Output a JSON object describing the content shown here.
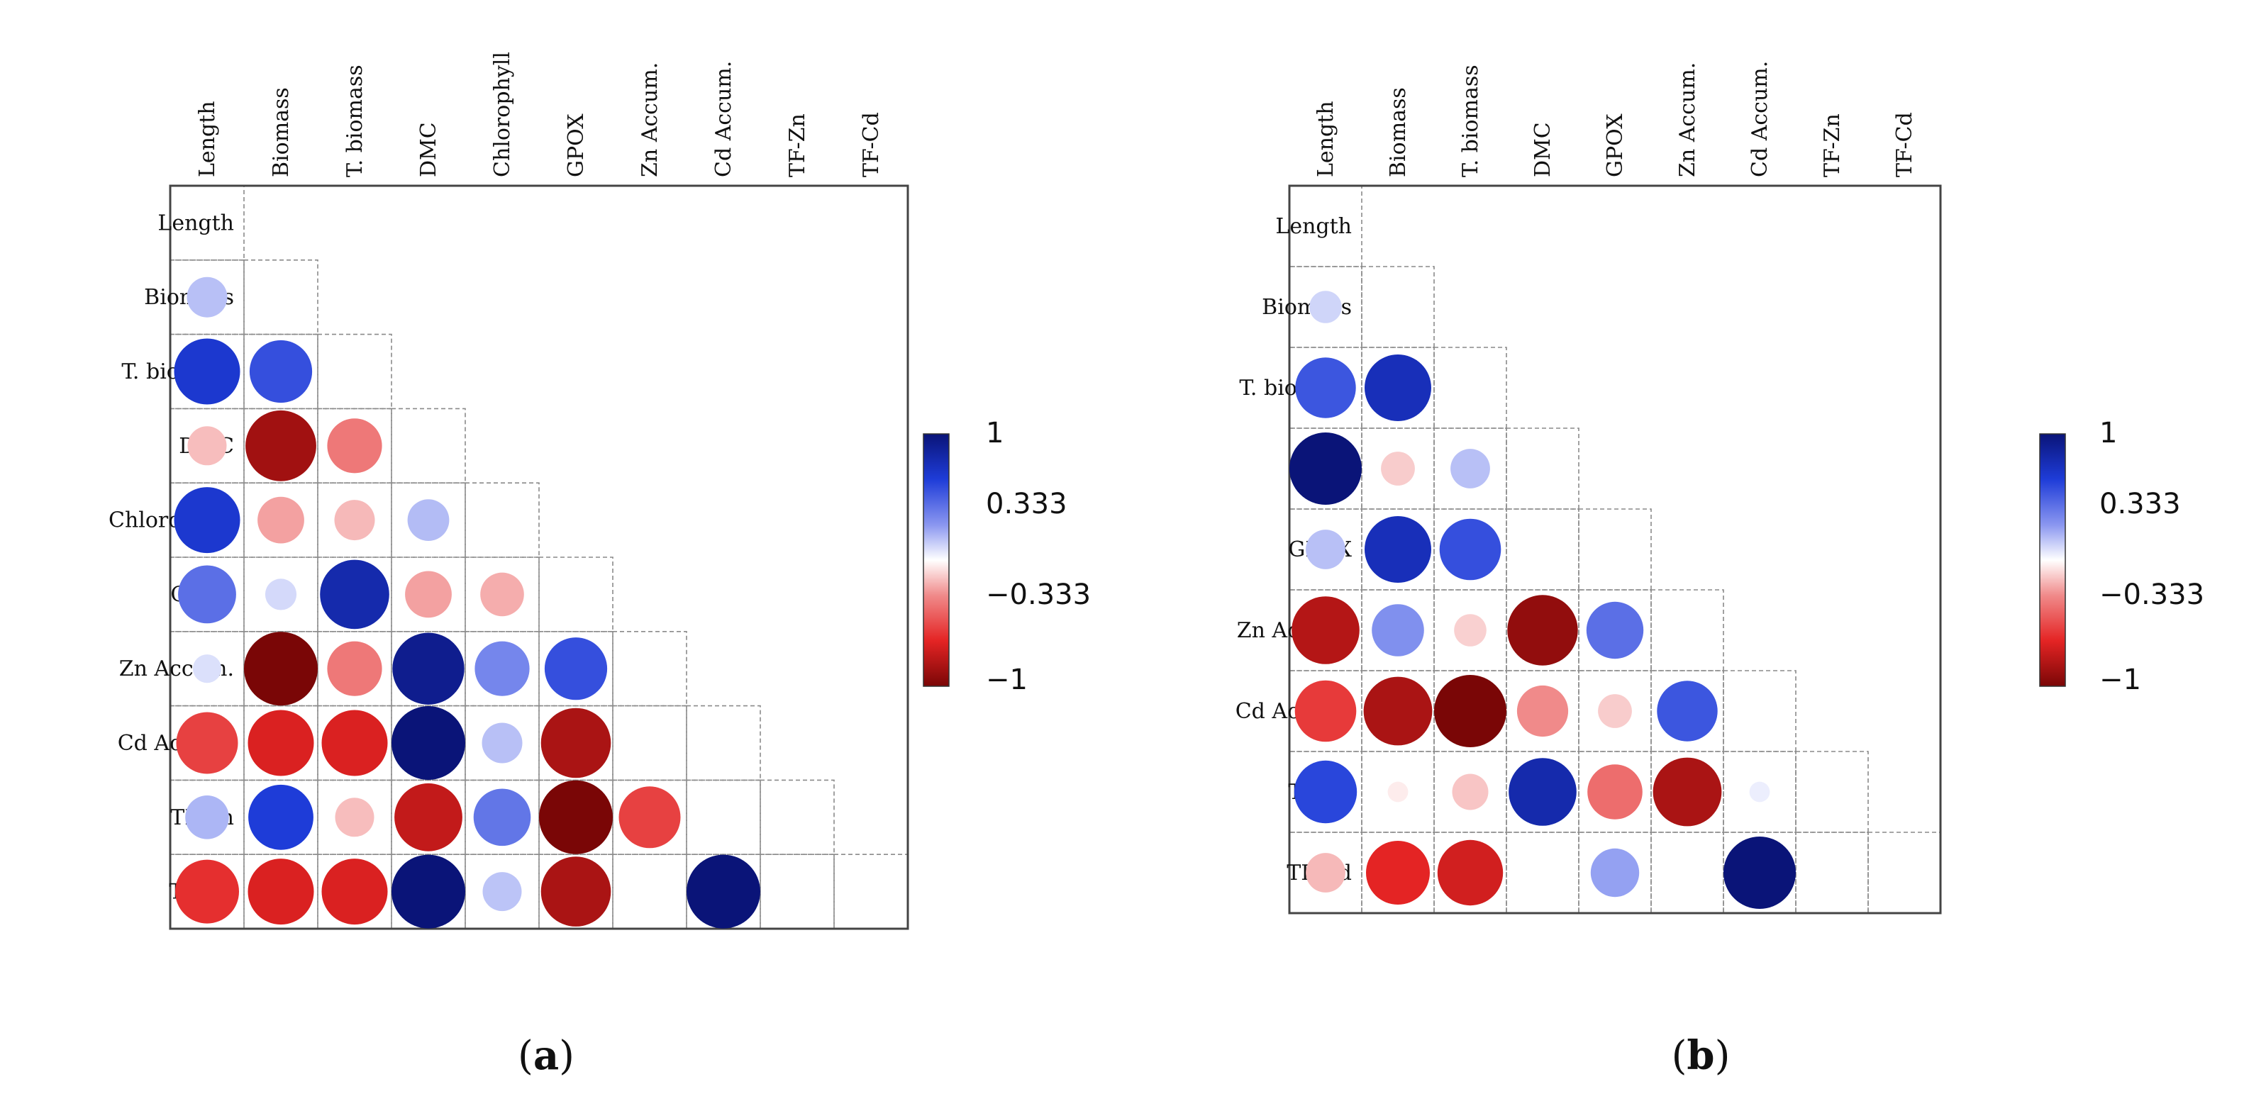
{
  "chart_data": [
    {
      "type": "heatmap",
      "subtype": "correlation-circle-matrix",
      "caption": "(a)",
      "caption_letter": "a",
      "variables": [
        "Length",
        "Biomass",
        "T. biomass",
        "DMC",
        "Chlorophyll",
        "GPOX",
        "Zn Accum.",
        "Cd Accum.",
        "TF-Zn",
        "TF-Cd"
      ],
      "correlations": [
        {
          "row": "Biomass",
          "col": "Length",
          "value": 0.3
        },
        {
          "row": "T. biomass",
          "col": "Length",
          "value": 0.8
        },
        {
          "row": "T. biomass",
          "col": "Biomass",
          "value": 0.72
        },
        {
          "row": "DMC",
          "col": "Length",
          "value": -0.28
        },
        {
          "row": "DMC",
          "col": "Biomass",
          "value": -0.92
        },
        {
          "row": "DMC",
          "col": "T. biomass",
          "value": -0.55
        },
        {
          "row": "Chlorophyll",
          "col": "Length",
          "value": 0.8
        },
        {
          "row": "Chlorophyll",
          "col": "Biomass",
          "value": -0.4
        },
        {
          "row": "Chlorophyll",
          "col": "T. biomass",
          "value": -0.3
        },
        {
          "row": "Chlorophyll",
          "col": "DMC",
          "value": 0.32
        },
        {
          "row": "GPOX",
          "col": "Length",
          "value": 0.62
        },
        {
          "row": "GPOX",
          "col": "Biomass",
          "value": 0.18
        },
        {
          "row": "GPOX",
          "col": "T. biomass",
          "value": 0.88
        },
        {
          "row": "GPOX",
          "col": "DMC",
          "value": -0.4
        },
        {
          "row": "GPOX",
          "col": "Chlorophyll",
          "value": -0.35
        },
        {
          "row": "Zn Accum.",
          "col": "Length",
          "value": 0.15
        },
        {
          "row": "Zn Accum.",
          "col": "Biomass",
          "value": -1.0
        },
        {
          "row": "Zn Accum.",
          "col": "T. biomass",
          "value": -0.55
        },
        {
          "row": "Zn Accum.",
          "col": "DMC",
          "value": 0.95
        },
        {
          "row": "Zn Accum.",
          "col": "Chlorophyll",
          "value": 0.55
        },
        {
          "row": "Zn Accum.",
          "col": "GPOX",
          "value": 0.72
        },
        {
          "row": "Cd Accum.",
          "col": "Length",
          "value": -0.7
        },
        {
          "row": "Cd Accum.",
          "col": "Biomass",
          "value": -0.8
        },
        {
          "row": "Cd Accum.",
          "col": "T. biomass",
          "value": -0.8
        },
        {
          "row": "Cd Accum.",
          "col": "DMC",
          "value": 1.0
        },
        {
          "row": "Cd Accum.",
          "col": "Chlorophyll",
          "value": 0.3
        },
        {
          "row": "Cd Accum.",
          "col": "GPOX",
          "value": -0.9
        },
        {
          "row": "TF-Zn",
          "col": "Length",
          "value": 0.35
        },
        {
          "row": "TF-Zn",
          "col": "Biomass",
          "value": 0.78
        },
        {
          "row": "TF-Zn",
          "col": "T. biomass",
          "value": -0.28
        },
        {
          "row": "TF-Zn",
          "col": "DMC",
          "value": -0.85
        },
        {
          "row": "TF-Zn",
          "col": "Chlorophyll",
          "value": 0.6
        },
        {
          "row": "TF-Zn",
          "col": "GPOX",
          "value": -1.0
        },
        {
          "row": "TF-Zn",
          "col": "Zn Accum.",
          "value": -0.7
        },
        {
          "row": "TF-Cd",
          "col": "Length",
          "value": -0.75
        },
        {
          "row": "TF-Cd",
          "col": "Biomass",
          "value": -0.8
        },
        {
          "row": "TF-Cd",
          "col": "T. biomass",
          "value": -0.8
        },
        {
          "row": "TF-Cd",
          "col": "DMC",
          "value": 1.0
        },
        {
          "row": "TF-Cd",
          "col": "Chlorophyll",
          "value": 0.28
        },
        {
          "row": "TF-Cd",
          "col": "GPOX",
          "value": -0.9
        },
        {
          "row": "TF-Cd",
          "col": "Zn Accum.",
          "value": 0.0
        },
        {
          "row": "TF-Cd",
          "col": "Cd Accum.",
          "value": 1.0
        }
      ],
      "colorbar": {
        "ticks": [
          "1",
          "0.333",
          "−0.333",
          "−1"
        ],
        "range": [
          -1,
          1
        ]
      }
    },
    {
      "type": "heatmap",
      "subtype": "correlation-circle-matrix",
      "caption": "(b)",
      "caption_letter": "b",
      "variables": [
        "Length",
        "Biomass",
        "T. biomass",
        "DMC",
        "GPOX",
        "Zn Accum.",
        "Cd Accum.",
        "TF-Zn",
        "TF-Cd"
      ],
      "correlations": [
        {
          "row": "Biomass",
          "col": "Length",
          "value": 0.2
        },
        {
          "row": "T. biomass",
          "col": "Length",
          "value": 0.7
        },
        {
          "row": "T. biomass",
          "col": "Biomass",
          "value": 0.85
        },
        {
          "row": "DMC",
          "col": "Length",
          "value": 1.0
        },
        {
          "row": "DMC",
          "col": "Biomass",
          "value": -0.22
        },
        {
          "row": "DMC",
          "col": "T. biomass",
          "value": 0.3
        },
        {
          "row": "GPOX",
          "col": "Length",
          "value": 0.3
        },
        {
          "row": "GPOX",
          "col": "Biomass",
          "value": 0.85
        },
        {
          "row": "GPOX",
          "col": "T. biomass",
          "value": 0.72
        },
        {
          "row": "GPOX",
          "col": "DMC",
          "value": 0.0
        },
        {
          "row": "Zn Accum.",
          "col": "Length",
          "value": -0.88
        },
        {
          "row": "Zn Accum.",
          "col": "Biomass",
          "value": 0.52
        },
        {
          "row": "Zn Accum.",
          "col": "T. biomass",
          "value": -0.2
        },
        {
          "row": "Zn Accum.",
          "col": "DMC",
          "value": -0.95
        },
        {
          "row": "Zn Accum.",
          "col": "GPOX",
          "value": 0.62
        },
        {
          "row": "Cd Accum.",
          "col": "Length",
          "value": -0.72
        },
        {
          "row": "Cd Accum.",
          "col": "Biomass",
          "value": -0.9
        },
        {
          "row": "Cd Accum.",
          "col": "T. biomass",
          "value": -1.0
        },
        {
          "row": "Cd Accum.",
          "col": "DMC",
          "value": -0.5
        },
        {
          "row": "Cd Accum.",
          "col": "GPOX",
          "value": -0.22
        },
        {
          "row": "Cd Accum.",
          "col": "Zn Accum.",
          "value": 0.7
        },
        {
          "row": "TF-Zn",
          "col": "Length",
          "value": 0.75
        },
        {
          "row": "TF-Zn",
          "col": "Biomass",
          "value": -0.08
        },
        {
          "row": "TF-Zn",
          "col": "T. biomass",
          "value": -0.25
        },
        {
          "row": "TF-Zn",
          "col": "DMC",
          "value": 0.88
        },
        {
          "row": "TF-Zn",
          "col": "GPOX",
          "value": -0.58
        },
        {
          "row": "TF-Zn",
          "col": "Zn Accum.",
          "value": -0.9
        },
        {
          "row": "TF-Zn",
          "col": "Cd Accum.",
          "value": 0.08
        },
        {
          "row": "TF-Cd",
          "col": "Length",
          "value": -0.3
        },
        {
          "row": "TF-Cd",
          "col": "Biomass",
          "value": -0.78
        },
        {
          "row": "TF-Cd",
          "col": "T. biomass",
          "value": -0.82
        },
        {
          "row": "TF-Cd",
          "col": "DMC",
          "value": 0.0
        },
        {
          "row": "TF-Cd",
          "col": "GPOX",
          "value": 0.45
        },
        {
          "row": "TF-Cd",
          "col": "Zn Accum.",
          "value": 0.0
        },
        {
          "row": "TF-Cd",
          "col": "Cd Accum.",
          "value": 1.0
        }
      ],
      "colorbar": {
        "ticks": [
          "1",
          "0.333",
          "−0.333",
          "−1"
        ],
        "range": [
          -1,
          1
        ]
      }
    }
  ]
}
